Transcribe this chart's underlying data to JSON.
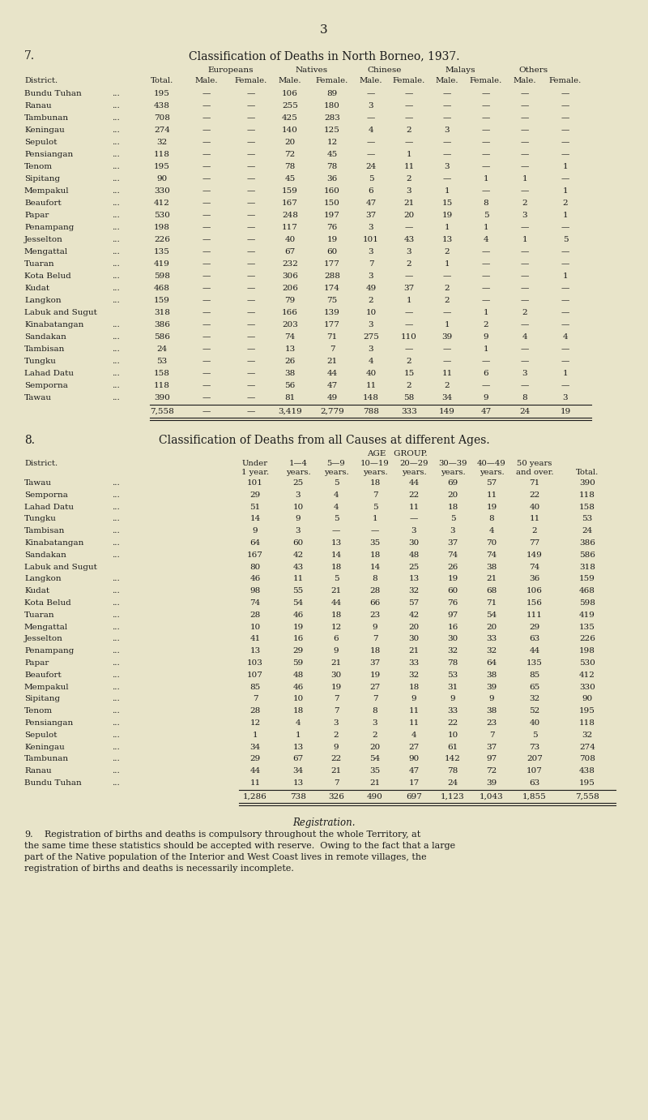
{
  "page_number": "3",
  "bg_color": "#e8e4c9",
  "text_color": "#1a1a1a",
  "table7_title_num": "7.",
  "table7_title": "Classification of Deaths in North Borneo, 1937.",
  "table7_col_groups": [
    "Europeans",
    "Natives",
    "Chinese",
    "Malays",
    "Others"
  ],
  "table7_rows": [
    [
      "Bundu Tuhan",
      "...",
      "195",
      "—",
      "—",
      "106",
      "89",
      "—",
      "—",
      "—",
      "—",
      "—",
      "—"
    ],
    [
      "Ranau",
      "...",
      "438",
      "—",
      "—",
      "255",
      "180",
      "3",
      "—",
      "—",
      "—",
      "—",
      "—"
    ],
    [
      "Tambunan",
      "...",
      "708",
      "—",
      "—",
      "425",
      "283",
      "—",
      "—",
      "—",
      "—",
      "—",
      "—"
    ],
    [
      "Keningau",
      "...",
      "274",
      "—",
      "—",
      "140",
      "125",
      "4",
      "2",
      "3",
      "—",
      "—",
      "—"
    ],
    [
      "Sepulot",
      "...",
      "32",
      "—",
      "—",
      "20",
      "12",
      "—",
      "—",
      "—",
      "—",
      "—",
      "—"
    ],
    [
      "Pensiangan",
      "...",
      "118",
      "—",
      "—",
      "72",
      "45",
      "—",
      "1",
      "—",
      "—",
      "—",
      "—"
    ],
    [
      "Tenom",
      "...",
      "195",
      "—",
      "—",
      "78",
      "78",
      "24",
      "11",
      "3",
      "—",
      "—",
      "1"
    ],
    [
      "Sipitang",
      "...",
      "90",
      "—",
      "—",
      "45",
      "36",
      "5",
      "2",
      "—",
      "1",
      "1",
      "—"
    ],
    [
      "Mempakul",
      "...",
      "330",
      "—",
      "—",
      "159",
      "160",
      "6",
      "3",
      "1",
      "—",
      "—",
      "1"
    ],
    [
      "Beaufort",
      "...",
      "412",
      "—",
      "—",
      "167",
      "150",
      "47",
      "21",
      "15",
      "8",
      "2",
      "2"
    ],
    [
      "Papar",
      "...",
      "530",
      "—",
      "—",
      "248",
      "197",
      "37",
      "20",
      "19",
      "5",
      "3",
      "1"
    ],
    [
      "Penampang",
      "...",
      "198",
      "—",
      "—",
      "117",
      "76",
      "3",
      "—",
      "1",
      "1",
      "—",
      "—"
    ],
    [
      "Jesselton",
      "...",
      "226",
      "—",
      "—",
      "40",
      "19",
      "101",
      "43",
      "13",
      "4",
      "1",
      "5"
    ],
    [
      "Mengattal",
      "...",
      "135",
      "—",
      "—",
      "67",
      "60",
      "3",
      "3",
      "2",
      "—",
      "—",
      "—"
    ],
    [
      "Tuaran",
      "...",
      "419",
      "—",
      "—",
      "232",
      "177",
      "7",
      "2",
      "1",
      "—",
      "—",
      "—"
    ],
    [
      "Kota Belud",
      "...",
      "598",
      "—",
      "—",
      "306",
      "288",
      "3",
      "—",
      "—",
      "—",
      "—",
      "1"
    ],
    [
      "Kudat",
      "...",
      "468",
      "—",
      "—",
      "206",
      "174",
      "49",
      "37",
      "2",
      "—",
      "—",
      "—"
    ],
    [
      "Langkon",
      "...",
      "159",
      "—",
      "—",
      "79",
      "75",
      "2",
      "1",
      "2",
      "—",
      "—",
      "—"
    ],
    [
      "Labuk and Sugut",
      "",
      "318",
      "—",
      "—",
      "166",
      "139",
      "10",
      "—",
      "—",
      "1",
      "2",
      "—"
    ],
    [
      "Kinabatangan",
      "...",
      "386",
      "—",
      "—",
      "203",
      "177",
      "3",
      "—",
      "1",
      "2",
      "—",
      "—"
    ],
    [
      "Sandakan",
      "...",
      "586",
      "—",
      "—",
      "74",
      "71",
      "275",
      "110",
      "39",
      "9",
      "4",
      "4"
    ],
    [
      "Tambisan",
      "...",
      "24",
      "—",
      "—",
      "13",
      "7",
      "3",
      "—",
      "—",
      "1",
      "—",
      "—"
    ],
    [
      "Tungku",
      "...",
      "53",
      "—",
      "—",
      "26",
      "21",
      "4",
      "2",
      "—",
      "—",
      "—",
      "—"
    ],
    [
      "Lahad Datu",
      "...",
      "158",
      "—",
      "—",
      "38",
      "44",
      "40",
      "15",
      "11",
      "6",
      "3",
      "1"
    ],
    [
      "Semporna",
      "...",
      "118",
      "—",
      "—",
      "56",
      "47",
      "11",
      "2",
      "2",
      "—",
      "—",
      "—"
    ],
    [
      "Tawau",
      "...",
      "390",
      "—",
      "—",
      "81",
      "49",
      "148",
      "58",
      "34",
      "9",
      "8",
      "3"
    ]
  ],
  "table7_totals": [
    "7,558",
    "—",
    "—",
    "3,419",
    "2,779",
    "788",
    "333",
    "149",
    "47",
    "24",
    "19"
  ],
  "table8_title_num": "8.",
  "table8_title": "Classification of Deaths from all Causes at different Ages.",
  "table8_rows": [
    [
      "Tawau",
      "...",
      "101",
      "25",
      "5",
      "18",
      "44",
      "69",
      "57",
      "71",
      "390"
    ],
    [
      "Semporna",
      "...",
      "29",
      "3",
      "4",
      "7",
      "22",
      "20",
      "11",
      "22",
      "118"
    ],
    [
      "Lahad Datu",
      "...",
      "51",
      "10",
      "4",
      "5",
      "11",
      "18",
      "19",
      "40",
      "158"
    ],
    [
      "Tungku",
      "...",
      "14",
      "9",
      "5",
      "1",
      "—",
      "5",
      "8",
      "11",
      "53"
    ],
    [
      "Tambisan",
      "...",
      "9",
      "3",
      "—",
      "—",
      "3",
      "3",
      "4",
      "2",
      "24"
    ],
    [
      "Kinabatangan",
      "...",
      "64",
      "60",
      "13",
      "35",
      "30",
      "37",
      "70",
      "77",
      "386"
    ],
    [
      "Sandakan",
      "...",
      "167",
      "42",
      "14",
      "18",
      "48",
      "74",
      "74",
      "149",
      "586"
    ],
    [
      "Labuk and Sugut",
      "",
      "80",
      "43",
      "18",
      "14",
      "25",
      "26",
      "38",
      "74",
      "318"
    ],
    [
      "Langkon",
      "...",
      "46",
      "11",
      "5",
      "8",
      "13",
      "19",
      "21",
      "36",
      "159"
    ],
    [
      "Kudat",
      "...",
      "98",
      "55",
      "21",
      "28",
      "32",
      "60",
      "68",
      "106",
      "468"
    ],
    [
      "Kota Belud",
      "...",
      "74",
      "54",
      "44",
      "66",
      "57",
      "76",
      "71",
      "156",
      "598"
    ],
    [
      "Tuaran",
      "...",
      "28",
      "46",
      "18",
      "23",
      "42",
      "97",
      "54",
      "111",
      "419"
    ],
    [
      "Mengattal",
      "...",
      "10",
      "19",
      "12",
      "9",
      "20",
      "16",
      "20",
      "29",
      "135"
    ],
    [
      "Jesselton",
      "...",
      "41",
      "16",
      "6",
      "7",
      "30",
      "30",
      "33",
      "63",
      "226"
    ],
    [
      "Penampang",
      "...",
      "13",
      "29",
      "9",
      "18",
      "21",
      "32",
      "32",
      "44",
      "198"
    ],
    [
      "Papar",
      "...",
      "103",
      "59",
      "21",
      "37",
      "33",
      "78",
      "64",
      "135",
      "530"
    ],
    [
      "Beaufort",
      "...",
      "107",
      "48",
      "30",
      "19",
      "32",
      "53",
      "38",
      "85",
      "412"
    ],
    [
      "Mempakul",
      "...",
      "85",
      "46",
      "19",
      "27",
      "18",
      "31",
      "39",
      "65",
      "330"
    ],
    [
      "Sipitang",
      "...",
      "7",
      "10",
      "7",
      "7",
      "9",
      "9",
      "9",
      "32",
      "90"
    ],
    [
      "Tenom",
      "...",
      "28",
      "18",
      "7",
      "8",
      "11",
      "33",
      "38",
      "52",
      "195"
    ],
    [
      "Pensiangan",
      "...",
      "12",
      "4",
      "3",
      "3",
      "11",
      "22",
      "23",
      "40",
      "118"
    ],
    [
      "Sepulot",
      "...",
      "1",
      "1",
      "2",
      "2",
      "4",
      "10",
      "7",
      "5",
      "32"
    ],
    [
      "Keningau",
      "...",
      "34",
      "13",
      "9",
      "20",
      "27",
      "61",
      "37",
      "73",
      "274"
    ],
    [
      "Tambunan",
      "...",
      "29",
      "67",
      "22",
      "54",
      "90",
      "142",
      "97",
      "207",
      "708"
    ],
    [
      "Ranau",
      "...",
      "44",
      "34",
      "21",
      "35",
      "47",
      "78",
      "72",
      "107",
      "438"
    ],
    [
      "Bundu Tuhan",
      "...",
      "11",
      "13",
      "7",
      "21",
      "17",
      "24",
      "39",
      "63",
      "195"
    ]
  ],
  "table8_totals": [
    "1,286",
    "738",
    "326",
    "490",
    "697",
    "1,123",
    "1,043",
    "1,855",
    "7,558"
  ],
  "registration_title": "Registration.",
  "registration_num": "9.",
  "registration_lines": [
    "Registration of births and deaths is compulsory throughout the whole Territory, at",
    "the same time these statistics should be accepted with reserve.  Owing to the fact that a large",
    "part of the Native population of the Interior and West Coast lives in remote villages, the",
    "registration of births and deaths is necessarily incomplete."
  ]
}
